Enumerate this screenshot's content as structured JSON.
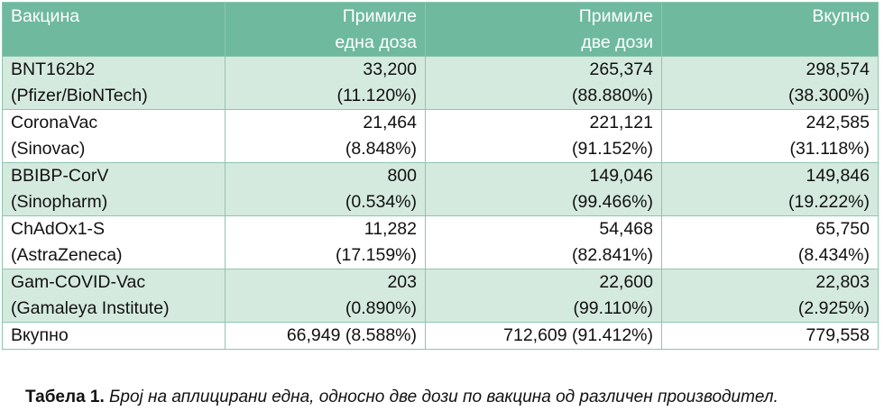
{
  "table": {
    "headers": [
      [
        "Вакцина"
      ],
      [
        "Примиле",
        "една доза"
      ],
      [
        "Примиле",
        "две дози"
      ],
      [
        "Вкупно"
      ]
    ],
    "rows": [
      {
        "vaccine": [
          "BNT162b2",
          "(Pfizer/BioNTech)"
        ],
        "one_dose": [
          "33,200",
          "(11.120%)"
        ],
        "two_doses": [
          "265,374",
          "(88.880%)"
        ],
        "total": [
          "298,574",
          "(38.300%)"
        ]
      },
      {
        "vaccine": [
          "CoronaVac",
          "(Sinovac)"
        ],
        "one_dose": [
          "21,464",
          "(8.848%)"
        ],
        "two_doses": [
          "221,121",
          "(91.152%)"
        ],
        "total": [
          "242,585",
          "(31.118%)"
        ]
      },
      {
        "vaccine": [
          "BBIBP-CorV",
          "(Sinopharm)"
        ],
        "one_dose": [
          "800",
          "(0.534%)"
        ],
        "two_doses": [
          "149,046",
          "(99.466%)"
        ],
        "total": [
          "149,846",
          "(19.222%)"
        ]
      },
      {
        "vaccine": [
          "ChAdOx1-S",
          "(AstraZeneca)"
        ],
        "one_dose": [
          "11,282",
          "(17.159%)"
        ],
        "two_doses": [
          "54,468",
          "(82.841%)"
        ],
        "total": [
          "65,750",
          "(8.434%)"
        ]
      },
      {
        "vaccine": [
          "Gam-COVID-Vac",
          "(Gamaleya Institute)"
        ],
        "one_dose": [
          "203",
          "(0.890%)"
        ],
        "two_doses": [
          "22,600",
          "(99.110%)"
        ],
        "total": [
          "22,803",
          "(2.925%)"
        ]
      }
    ],
    "total_row": {
      "label": "Вкупно",
      "one_dose": "66,949 (8.588%)",
      "two_doses": "712,609 (91.412%)",
      "total": "779,558"
    }
  },
  "caption": {
    "label": "Табела 1.",
    "text": "Број на аплицирани една, односно две дози по вакцина од различен производител."
  },
  "colors": {
    "header_bg": "#6fb99f",
    "band_bg": "#d5eadf",
    "border": "#8cc6b0"
  }
}
